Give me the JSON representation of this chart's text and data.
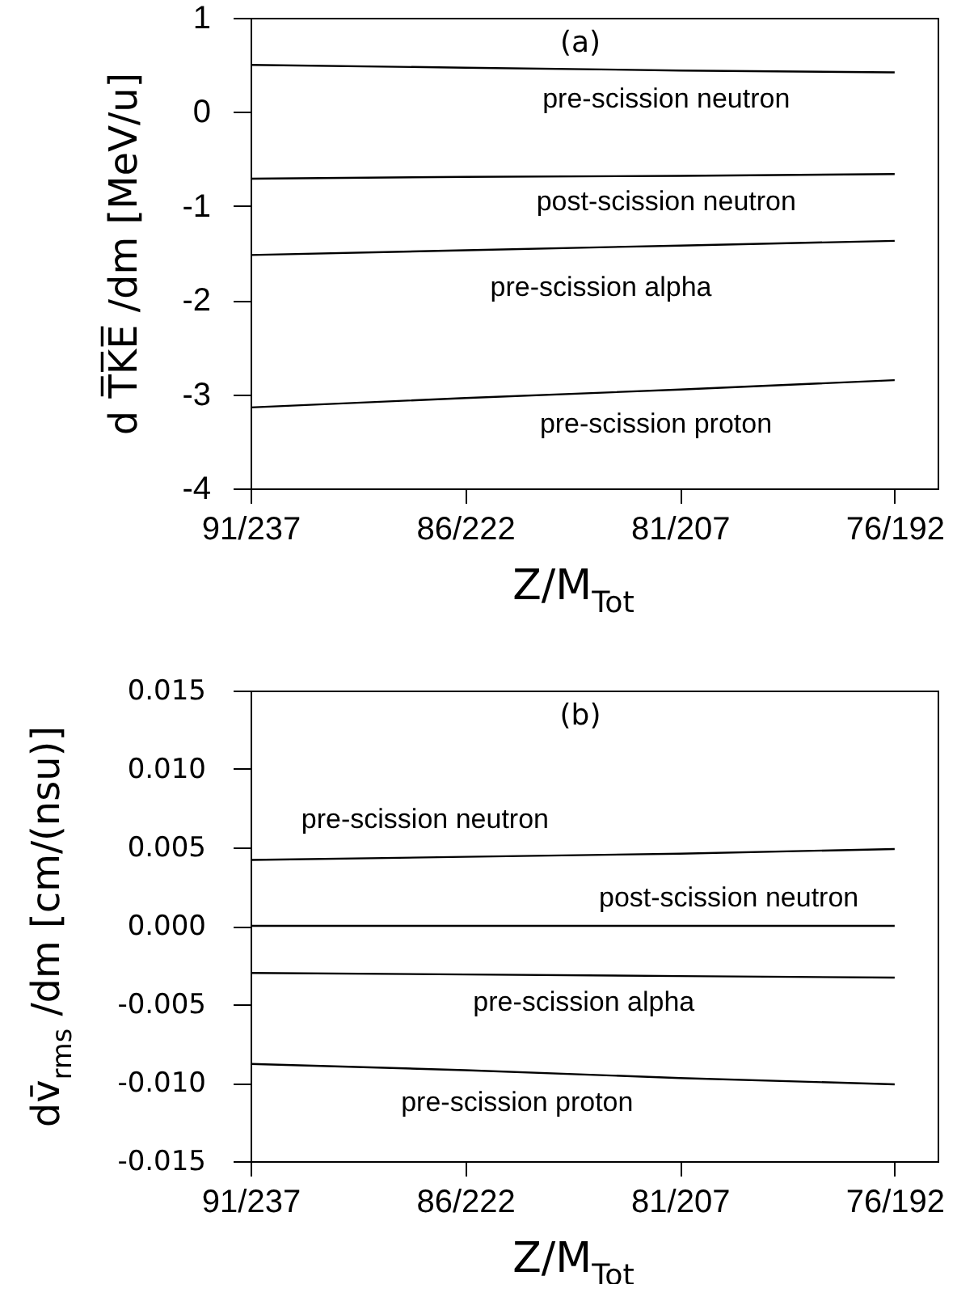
{
  "chart_data": [
    {
      "type": "line",
      "title": "(a)",
      "xlabel": "Z/M$_{Tot}$",
      "ylabel": "d T̅K̅E̅ /dm [MeV/u]",
      "categories": [
        "91/237",
        "86/222",
        "81/207",
        "76/192"
      ],
      "ylim": [
        -4,
        1
      ],
      "yticks": [
        -4,
        -3,
        -2,
        -1,
        0,
        1
      ],
      "series": [
        {
          "name": "pre-scission neutron",
          "color": "#000000",
          "values": [
            0.5,
            0.47,
            0.44,
            0.42
          ]
        },
        {
          "name": "post-scission neutron",
          "color": "#000000",
          "values": [
            -0.71,
            -0.69,
            -0.68,
            -0.66
          ]
        },
        {
          "name": "pre-scission alpha",
          "color": "#000000",
          "values": [
            -1.52,
            -1.47,
            -1.42,
            -1.37
          ]
        },
        {
          "name": "pre-scission proton",
          "color": "#000000",
          "values": [
            -3.14,
            -3.04,
            -2.95,
            -2.85
          ]
        }
      ]
    },
    {
      "type": "line",
      "title": "(b)",
      "xlabel": "Z/M$_{Tot}$",
      "ylabel": "dv̄$_{rms}$ /dm [cm/(nsu)]",
      "categories": [
        "91/237",
        "86/222",
        "81/207",
        "76/192"
      ],
      "ylim": [
        -0.015,
        0.015
      ],
      "yticks": [
        -0.015,
        {
          "value": -0.01,
          "label": "-0.010"
        },
        -0.005,
        {
          "value": 0,
          "label": "0.000"
        },
        0.005,
        {
          "value": 0.01,
          "label": "0.010"
        },
        0.015
      ],
      "series": [
        {
          "name": "pre-scission neutron",
          "color": "#000000",
          "values": [
            0.0042,
            0.0044,
            0.0046,
            0.0049
          ]
        },
        {
          "name": "post-scission neutron",
          "color": "#000000",
          "values": [
            0,
            0,
            0,
            0
          ]
        },
        {
          "name": "pre-scission alpha",
          "color": "#000000",
          "values": [
            -0.003,
            -0.0031,
            -0.0032,
            -0.0033
          ]
        },
        {
          "name": "pre-scission proton",
          "color": "#000000",
          "values": [
            -0.0088,
            -0.0092,
            -0.0097,
            -0.0101
          ]
        }
      ]
    }
  ]
}
